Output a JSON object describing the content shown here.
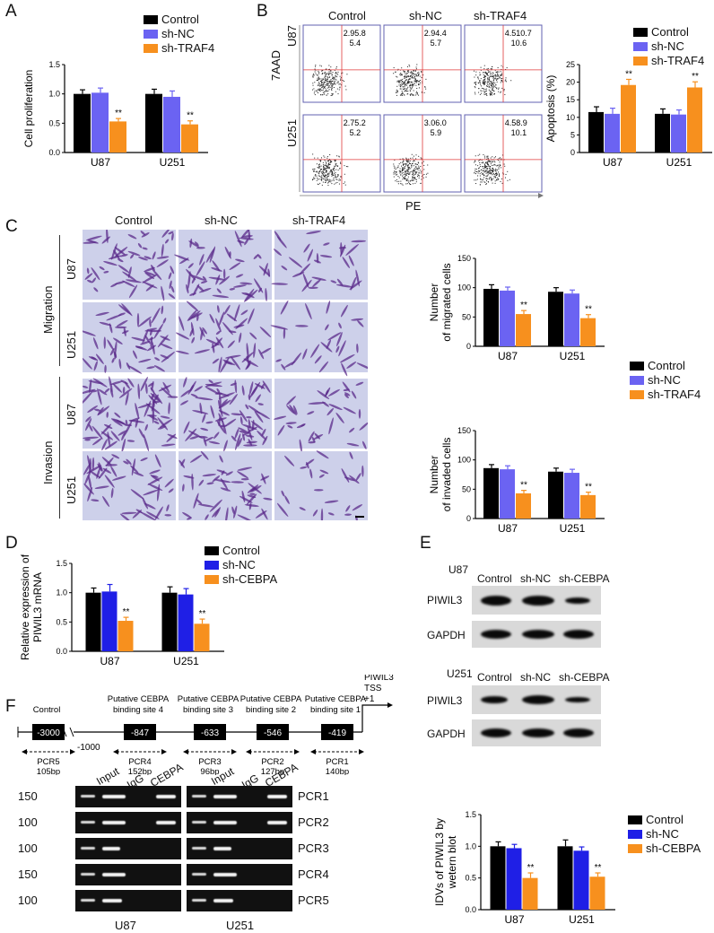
{
  "panels": {
    "A": "A",
    "B": "B",
    "C": "C",
    "D": "D",
    "E": "E",
    "F": "F"
  },
  "colors": {
    "control": "#000000",
    "shnc": "#6b63f2",
    "shtraf4": "#f7901e",
    "shnc_d": "#1f1fe6"
  },
  "legends": {
    "traf4": [
      "Control",
      "sh-NC",
      "sh-TRAF4"
    ],
    "cebpa": [
      "Control",
      "sh-NC",
      "sh-CEBPA"
    ]
  },
  "chart_data": [
    {
      "id": "A",
      "type": "bar",
      "ylabel": "Cell proliferation",
      "categories": [
        "U87",
        "U251"
      ],
      "ylim": [
        0,
        1.5
      ],
      "yticks": [
        "0.0",
        "0.5",
        "1.0",
        "1.5"
      ],
      "series": [
        {
          "name": "Control",
          "values": [
            1.0,
            1.0
          ]
        },
        {
          "name": "sh-NC",
          "values": [
            1.02,
            0.95
          ]
        },
        {
          "name": "sh-TRAF4",
          "values": [
            0.53,
            0.48
          ]
        }
      ],
      "errors": [
        [
          0.07,
          0.08
        ],
        [
          0.08,
          0.1
        ],
        [
          0.05,
          0.06
        ]
      ],
      "annotations": [
        "**",
        "**"
      ]
    },
    {
      "id": "B",
      "type": "bar",
      "ylabel": "Apoptosis (%)",
      "categories": [
        "U87",
        "U251"
      ],
      "ylim": [
        0,
        25
      ],
      "yticks": [
        "0",
        "5",
        "10",
        "15",
        "20",
        "25"
      ],
      "series": [
        {
          "name": "Control",
          "values": [
            11.5,
            11.0
          ]
        },
        {
          "name": "sh-NC",
          "values": [
            11.0,
            10.8
          ]
        },
        {
          "name": "sh-TRAF4",
          "values": [
            19.2,
            18.5
          ]
        }
      ],
      "errors": [
        [
          1.5,
          1.4
        ],
        [
          1.6,
          1.3
        ],
        [
          1.6,
          1.6
        ]
      ],
      "annotations": [
        "**",
        "**"
      ]
    },
    {
      "id": "C1",
      "type": "bar",
      "ylabel": [
        "Number",
        "of migrated cells"
      ],
      "categories": [
        "U87",
        "U251"
      ],
      "ylim": [
        0,
        150
      ],
      "yticks": [
        "0",
        "50",
        "100",
        "150"
      ],
      "series": [
        {
          "name": "Control",
          "values": [
            98,
            93
          ]
        },
        {
          "name": "sh-NC",
          "values": [
            95,
            90
          ]
        },
        {
          "name": "sh-TRAF4",
          "values": [
            55,
            48
          ]
        }
      ],
      "errors": [
        [
          7,
          7
        ],
        [
          6,
          6
        ],
        [
          6,
          6
        ]
      ],
      "annotations": [
        "**",
        "**"
      ]
    },
    {
      "id": "C2",
      "type": "bar",
      "ylabel": [
        "Number",
        "of invaded cells"
      ],
      "categories": [
        "U87",
        "U251"
      ],
      "ylim": [
        0,
        150
      ],
      "yticks": [
        "0",
        "50",
        "100",
        "150"
      ],
      "series": [
        {
          "name": "Control",
          "values": [
            86,
            80
          ]
        },
        {
          "name": "sh-NC",
          "values": [
            84,
            78
          ]
        },
        {
          "name": "sh-TRAF4",
          "values": [
            43,
            40
          ]
        }
      ],
      "errors": [
        [
          6,
          6
        ],
        [
          6,
          6
        ],
        [
          5,
          5
        ]
      ],
      "annotations": [
        "**",
        "**"
      ]
    },
    {
      "id": "D",
      "type": "bar",
      "ylabel": [
        "Relative expression of",
        "PIWIL3 mRNA"
      ],
      "categories": [
        "U87",
        "U251"
      ],
      "ylim": [
        0,
        1.5
      ],
      "yticks": [
        "0.0",
        "0.5",
        "1.0",
        "1.5"
      ],
      "series": [
        {
          "name": "Control",
          "values": [
            1.0,
            1.0
          ]
        },
        {
          "name": "sh-NC",
          "values": [
            1.02,
            0.97
          ]
        },
        {
          "name": "sh-CEBPA",
          "values": [
            0.52,
            0.47
          ]
        }
      ],
      "errors": [
        [
          0.08,
          0.1
        ],
        [
          0.12,
          0.1
        ],
        [
          0.06,
          0.08
        ]
      ],
      "annotations": [
        "**",
        "**"
      ]
    },
    {
      "id": "E",
      "type": "bar",
      "ylabel": [
        "IDVs of PIWIL3 by",
        "wetern blot"
      ],
      "categories": [
        "U87",
        "U251"
      ],
      "ylim": [
        0,
        1.5
      ],
      "yticks": [
        "0.0",
        "0.5",
        "1.0",
        "1.5"
      ],
      "series": [
        {
          "name": "Control",
          "values": [
            1.0,
            1.0
          ]
        },
        {
          "name": "sh-NC",
          "values": [
            0.97,
            0.93
          ]
        },
        {
          "name": "sh-CEBPA",
          "values": [
            0.5,
            0.52
          ]
        }
      ],
      "errors": [
        [
          0.07,
          0.1
        ],
        [
          0.06,
          0.06
        ],
        [
          0.08,
          0.06
        ]
      ],
      "annotations": [
        "**",
        "**"
      ]
    }
  ],
  "flow": {
    "cols": [
      "Control",
      "sh-NC",
      "sh-TRAF4"
    ],
    "rows": [
      "U87",
      "U251"
    ],
    "yaxis": "7AAD",
    "xaxis": "PE",
    "quad": [
      [
        "2.95.8",
        "5.4",
        "2.94.4",
        "5.7",
        "4.510.7",
        "10.6"
      ],
      [
        "2.75.2",
        "5.2",
        "3.06.0",
        "5.9",
        "4.58.9",
        "10.1"
      ]
    ]
  },
  "transwell": {
    "cols": [
      "Control",
      "sh-NC",
      "sh-TRAF4"
    ],
    "groups": [
      "Migration",
      "Invasion"
    ],
    "rows": [
      "U87",
      "U251"
    ]
  },
  "western": {
    "blocks": [
      {
        "cell": "U87",
        "cols": [
          "Control",
          "sh-NC",
          "sh-CEBPA"
        ]
      },
      {
        "cell": "U251",
        "cols": [
          "Control",
          "sh-NC",
          "sh-CEBPA"
        ]
      }
    ],
    "proteins": [
      "PIWIL3",
      "GAPDH"
    ]
  },
  "chip": {
    "sites": [
      {
        "title": "Control",
        "box": "-3000",
        "pcr": "PCR5",
        "size": "105bp"
      },
      {
        "title": "Putative CEBPA binding site 4",
        "box": "-847",
        "pcr": "PCR4",
        "size": "152bp"
      },
      {
        "title": "Putative CEBPA binding site 3",
        "box": "-633",
        "pcr": "PCR3",
        "size": "96bp"
      },
      {
        "title": "Putative CEBPA binding site 2",
        "box": "-546",
        "pcr": "PCR2",
        "size": "127bp"
      },
      {
        "title": "Putative CEBPA binding site 1",
        "box": "-419",
        "pcr": "PCR1",
        "size": "140bp"
      }
    ],
    "break": "-1000",
    "tss": [
      "PIWIL3",
      "TSS",
      "+1"
    ],
    "gel_cols": [
      "Input",
      "IgG",
      "CEBPA"
    ],
    "gel_rows": [
      {
        "mw": "150",
        "pcr": "PCR1"
      },
      {
        "mw": "100",
        "pcr": "PCR2"
      },
      {
        "mw": "100",
        "pcr": "PCR3"
      },
      {
        "mw": "150",
        "pcr": "PCR4"
      },
      {
        "mw": "100",
        "pcr": "PCR5"
      }
    ],
    "gel_cells": [
      "U87",
      "U251"
    ]
  }
}
